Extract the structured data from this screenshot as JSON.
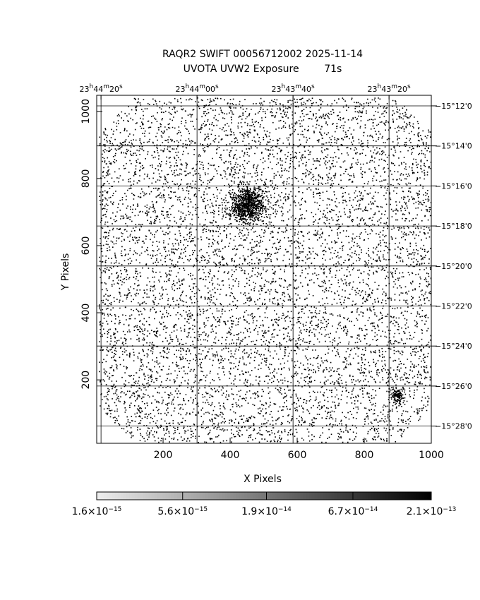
{
  "chart_data": {
    "type": "image",
    "title": [
      "RAQR2 SWIFT 00056712002 2025-11-14",
      "UVOTA UVW2 Exposure        71s"
    ],
    "xlabel": "X Pixels",
    "ylabel": "Y Pixels",
    "xlim": [
      2,
      1000
    ],
    "ylim": [
      11,
      1048
    ],
    "xticks": [
      200,
      400,
      600,
      800,
      1000
    ],
    "yticks": [
      200,
      400,
      600,
      800,
      1000
    ],
    "x2lim": [
      85460.9,
      85391.2
    ],
    "x2ticks": [
      {
        "value": 85460,
        "label": "23h44m20s"
      },
      {
        "value": 85440,
        "label": "23h44m00s"
      },
      {
        "value": 85420,
        "label": "23h43m40s"
      },
      {
        "value": 85400,
        "label": "23h43m20s"
      }
    ],
    "y2lim": [
      -15.481,
      -15.1912
    ],
    "y2ticks": [
      {
        "value": -15.2,
        "label": "−15°12'0"
      },
      {
        "value": -15.23333,
        "label": "−15°14'0"
      },
      {
        "value": -15.26667,
        "label": "−15°16'0"
      },
      {
        "value": -15.3,
        "label": "−15°18'0"
      },
      {
        "value": -15.33333,
        "label": "−15°20'0"
      },
      {
        "value": -15.36667,
        "label": "−15°22'0"
      },
      {
        "value": -15.4,
        "label": "−15°24'0"
      },
      {
        "value": -15.43333,
        "label": "−15°26'0"
      },
      {
        "value": -15.46667,
        "label": "−15°28'0"
      }
    ],
    "colorbar": {
      "log": true,
      "lim": [
        1.6e-15,
        2.1e-13
      ],
      "ticks": [
        {
          "value": 1.6e-15,
          "label": "1.6×10−15"
        },
        {
          "value": 5.6e-15,
          "label": "5.6×10−15"
        },
        {
          "value": 1.9e-14,
          "label": "1.9×10−14"
        },
        {
          "value": 6.7e-14,
          "label": "6.7×10−14"
        },
        {
          "value": 2.1e-13,
          "label": "2.1×10−13"
        }
      ]
    },
    "grid": true
  }
}
